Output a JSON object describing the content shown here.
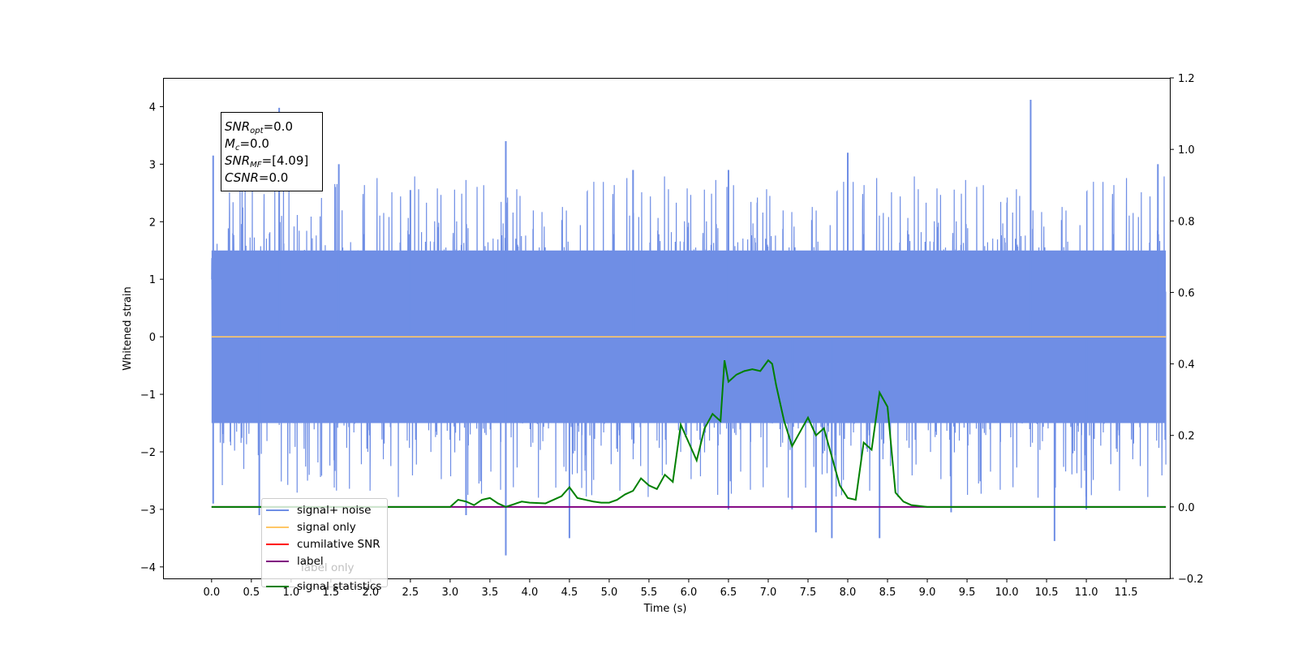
{
  "chart_data": {
    "type": "line",
    "xlabel": "Time (s)",
    "ylabel": "Whitened strain",
    "xlim": [
      -0.6,
      12.05
    ],
    "ylim": [
      -4.2,
      4.5
    ],
    "y2lim": [
      -0.2,
      1.2
    ],
    "x_ticks": [
      "0.0",
      "0.5",
      "1.0",
      "1.5",
      "2.0",
      "2.5",
      "3.0",
      "3.5",
      "4.0",
      "4.5",
      "5.0",
      "5.5",
      "6.0",
      "6.5",
      "7.0",
      "7.5",
      "8.0",
      "8.5",
      "9.0",
      "9.5",
      "10.0",
      "10.5",
      "11.0",
      "11.5"
    ],
    "y_ticks": [
      "4",
      "3",
      "2",
      "1",
      "0",
      "−1",
      "−2",
      "−3",
      "−4"
    ],
    "y2_ticks": [
      "1.2",
      "1.0",
      "0.8",
      "0.6",
      "0.4",
      "0.2",
      "0.0",
      "−0.2"
    ],
    "annotation": {
      "snr_opt": "SNR",
      "snr_opt_sub": "opt",
      "snr_opt_value": "=0.0",
      "mc": "M",
      "mc_sub": "c",
      "mc_value": "=0.0",
      "snr_mf": "SNR",
      "snr_mf_sub": "MF",
      "snr_mf_value": "=[4.09]",
      "csnr": "CSNR",
      "csnr_value": "=0.0"
    },
    "legend": [
      {
        "label": "signal+ noise",
        "color": "#6f8ee5"
      },
      {
        "label": "signal only",
        "color": "#ffc766"
      },
      {
        "label": "cumilative SNR",
        "color": "#ff0000"
      },
      {
        "label": "label",
        "color": "#800080"
      },
      {
        "label": "label only",
        "color": "#800080"
      },
      {
        "label": "signal statistics",
        "color": "#008000"
      }
    ],
    "series": [
      {
        "name": "signal+ noise",
        "axis": "left",
        "color": "#6f8ee5",
        "x_range": [
          0.0,
          12.0
        ],
        "core_range": [
          -1.5,
          1.5
        ],
        "spikes": [
          [
            0.02,
            3.15
          ],
          [
            0.02,
            -2.9
          ],
          [
            0.85,
            3.98
          ],
          [
            0.6,
            -3.1
          ],
          [
            1.6,
            3.0
          ],
          [
            2.5,
            2.55
          ],
          [
            3.2,
            -3.1
          ],
          [
            3.7,
            3.4
          ],
          [
            3.7,
            -3.8
          ],
          [
            4.5,
            -3.5
          ],
          [
            5.3,
            2.9
          ],
          [
            6.5,
            2.9
          ],
          [
            6.5,
            -3.0
          ],
          [
            7.3,
            -3.0
          ],
          [
            7.6,
            -3.4
          ],
          [
            7.8,
            -3.5
          ],
          [
            8.0,
            3.2
          ],
          [
            8.4,
            -3.5
          ],
          [
            9.3,
            -3.05
          ],
          [
            10.3,
            4.12
          ],
          [
            10.6,
            -3.55
          ],
          [
            11.0,
            -3.0
          ],
          [
            11.9,
            3.0
          ]
        ]
      },
      {
        "name": "signal only",
        "axis": "left",
        "color": "#ffc766",
        "x": [
          0.0,
          12.0
        ],
        "y": [
          0.0,
          0.0
        ]
      },
      {
        "name": "label",
        "axis": "right",
        "color": "#800080",
        "x": [
          0.0,
          12.0
        ],
        "y": [
          0.0,
          0.0
        ]
      },
      {
        "name": "signal statistics",
        "axis": "right",
        "color": "#008000",
        "x": [
          0.0,
          2.5,
          3.0,
          3.1,
          3.2,
          3.3,
          3.4,
          3.5,
          3.6,
          3.7,
          3.9,
          4.0,
          4.2,
          4.3,
          4.4,
          4.5,
          4.6,
          4.7,
          4.8,
          4.9,
          5.0,
          5.1,
          5.2,
          5.3,
          5.4,
          5.5,
          5.6,
          5.7,
          5.8,
          5.9,
          6.0,
          6.1,
          6.2,
          6.3,
          6.4,
          6.45,
          6.5,
          6.6,
          6.7,
          6.8,
          6.9,
          7.0,
          7.05,
          7.1,
          7.2,
          7.3,
          7.4,
          7.5,
          7.6,
          7.7,
          7.8,
          7.9,
          8.0,
          8.1,
          8.2,
          8.3,
          8.4,
          8.5,
          8.6,
          8.7,
          8.8,
          9.0,
          12.0
        ],
        "y": [
          0.0,
          0.0,
          0.0,
          0.02,
          0.015,
          0.005,
          0.02,
          0.025,
          0.01,
          0.0,
          0.015,
          0.012,
          0.01,
          0.02,
          0.03,
          0.055,
          0.025,
          0.02,
          0.015,
          0.012,
          0.012,
          0.02,
          0.035,
          0.045,
          0.08,
          0.06,
          0.05,
          0.09,
          0.07,
          0.23,
          0.18,
          0.13,
          0.22,
          0.26,
          0.24,
          0.41,
          0.35,
          0.37,
          0.38,
          0.385,
          0.38,
          0.41,
          0.4,
          0.34,
          0.24,
          0.17,
          0.21,
          0.25,
          0.2,
          0.22,
          0.14,
          0.06,
          0.025,
          0.02,
          0.18,
          0.16,
          0.32,
          0.28,
          0.04,
          0.015,
          0.005,
          0.0,
          0.0
        ]
      }
    ]
  }
}
